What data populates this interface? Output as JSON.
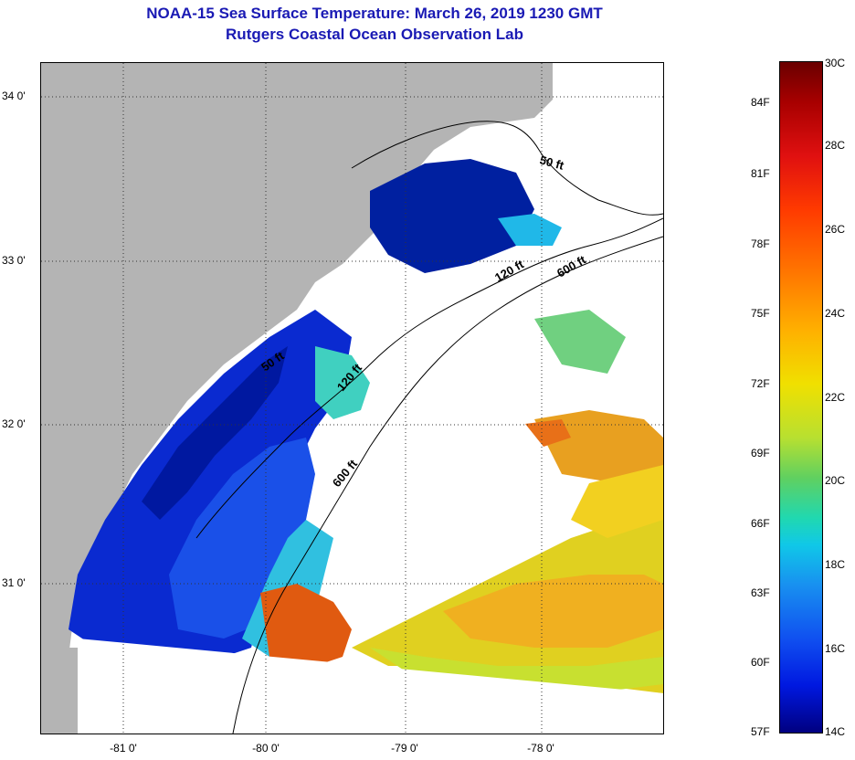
{
  "title": {
    "line1": "NOAA-15 Sea Surface Temperature:  March 26, 2019 1230 GMT",
    "line2": "Rutgers Coastal Ocean Observation Lab"
  },
  "map": {
    "lat_labels": [
      "34 0'",
      "33 0'",
      "32 0'",
      "31 0'"
    ],
    "lon_labels": [
      "-81 0'",
      "-80 0'",
      "-79 0'",
      "-78 0'"
    ],
    "contour_labels": [
      "50 ft",
      "120 ft",
      "600 ft",
      "50 ft",
      "120 ft",
      "600 ft"
    ],
    "colors": {
      "land": "#b4b4b4",
      "cloud": "#ffffff",
      "cold": "#0a2ad0",
      "nearshore": "#0020a0",
      "mid": "#30c0e0",
      "warm": "#e0d020",
      "hot": "#e05a10"
    }
  },
  "colorbar": {
    "fahrenheit": [
      "84F",
      "81F",
      "78F",
      "75F",
      "72F",
      "69F",
      "66F",
      "63F",
      "60F",
      "57F"
    ],
    "celsius": [
      "30C",
      "28C",
      "26C",
      "24C",
      "22C",
      "20C",
      "18C",
      "16C",
      "14C"
    ]
  }
}
